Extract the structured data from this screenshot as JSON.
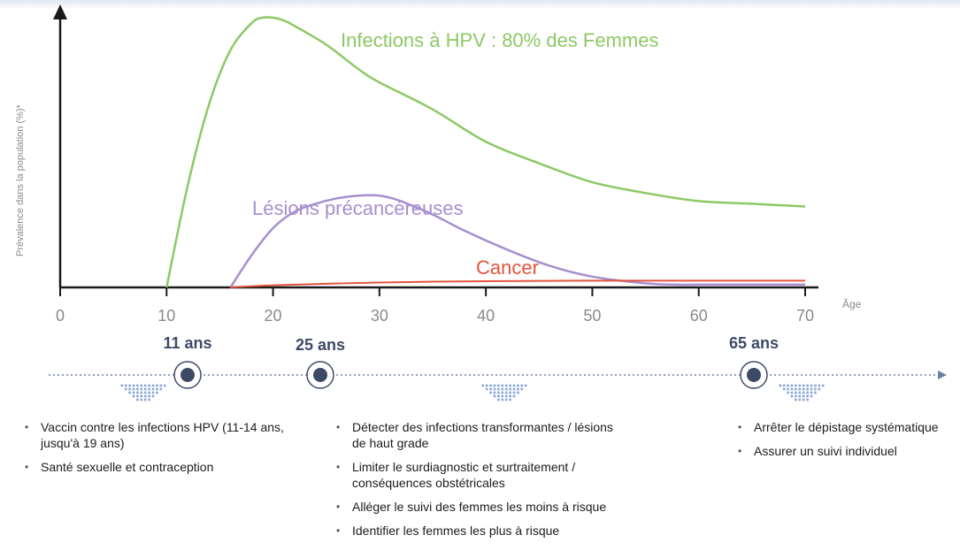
{
  "chart_data": {
    "type": "line",
    "title": "",
    "xlabel": "Âge",
    "ylabel": "Prévalence dans la population (%)*",
    "xlim": [
      0,
      71
    ],
    "ylim": [
      0,
      100
    ],
    "x_ticks": [
      "0",
      "10",
      "20",
      "30",
      "40",
      "50",
      "60",
      "70"
    ],
    "colors": {
      "infections": "#8cc965",
      "lesions": "#a68fcf",
      "cancer": "#e2543d",
      "axis": "#1a1a1a"
    },
    "series": [
      {
        "name": "Infections à HPV : 80% des Femmes",
        "x": [
          10,
          12,
          14,
          16,
          18,
          19,
          20,
          21,
          22,
          25,
          28,
          30,
          35,
          40,
          45,
          50,
          55,
          60,
          65,
          70
        ],
        "values": [
          0,
          38,
          68,
          88,
          98,
          100,
          100,
          99,
          97,
          90,
          81,
          76,
          66,
          54,
          46,
          39,
          35,
          32,
          31,
          30
        ]
      },
      {
        "name": "Lésions précancéreuses",
        "x": [
          16,
          18,
          20,
          22,
          24,
          26,
          28,
          30,
          32,
          35,
          38,
          42,
          46,
          50,
          55,
          58,
          60,
          65,
          70
        ],
        "values": [
          0,
          12,
          22,
          28,
          31,
          33,
          34,
          34,
          32,
          27,
          21,
          14,
          8,
          4,
          1.5,
          1,
          1,
          1,
          1
        ]
      },
      {
        "name": "Cancer",
        "x": [
          16,
          20,
          30,
          40,
          50,
          60,
          70
        ],
        "values": [
          0,
          0.8,
          1.8,
          2.3,
          2.5,
          2.5,
          2.5
        ]
      }
    ]
  },
  "timeline": {
    "milestones": [
      {
        "label": "11 ans",
        "age": 11
      },
      {
        "label": "25 ans",
        "age": 25
      },
      {
        "label": "65 ans",
        "age": 65
      }
    ],
    "groups": [
      {
        "items": [
          "Vaccin contre les infections HPV (11-14 ans, jusqu'à 19 ans)",
          "Santé sexuelle et contraception"
        ]
      },
      {
        "items": [
          "Détecter des infections transformantes / lésions de haut grade",
          "Limiter le surdiagnostic et surtraitement / conséquences obstétricales",
          "Alléger le suivi des femmes les moins à risque",
          "Identifier les femmes les plus à risque"
        ]
      },
      {
        "items": [
          "Arrêter le dépistage systématique",
          "Assurer un suivi individuel"
        ]
      }
    ],
    "colors": {
      "line": "#6d7fa6",
      "node": "#3d4a66",
      "triangle": "#8aa4d6"
    }
  }
}
